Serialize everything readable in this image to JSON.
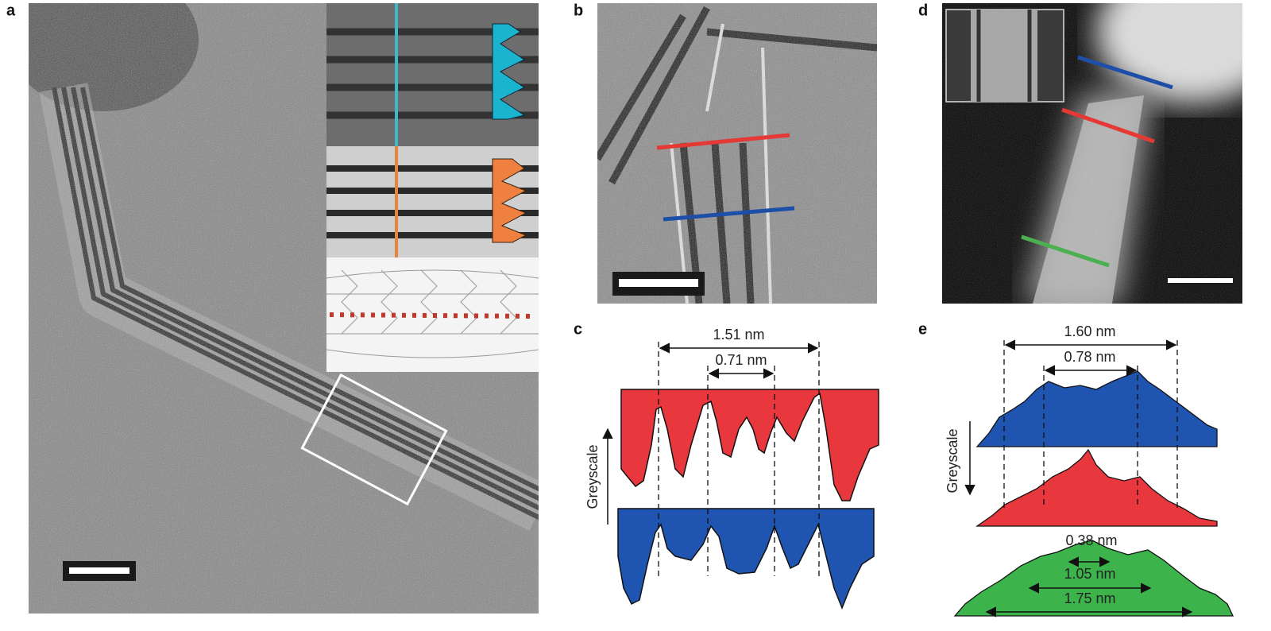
{
  "panels": [
    {
      "label": "a"
    },
    {
      "label": "b"
    },
    {
      "label": "c",
      "annotations": [
        "1.51 nm",
        "0.71 nm"
      ],
      "axis_label": "Greyscale"
    },
    {
      "label": "d"
    },
    {
      "label": "e",
      "annotations": [
        "1.60 nm",
        "0.78 nm",
        "0.38 nm",
        "1.05 nm",
        "1.75 nm"
      ],
      "axis_label": "Greyscale"
    }
  ]
}
